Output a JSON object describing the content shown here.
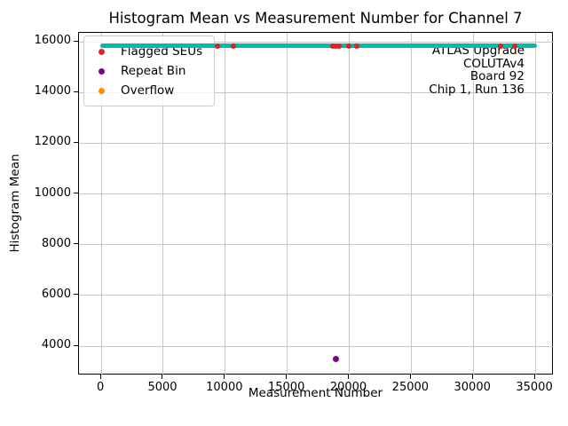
{
  "chart_data": {
    "type": "scatter",
    "title": "Histogram Mean vs Measurement Number for Channel 7",
    "xlabel": "Measurement Number",
    "ylabel": "Histogram Mean",
    "xlim": [
      -1800,
      36500
    ],
    "ylim": [
      2850,
      16350
    ],
    "xticks": [
      0,
      5000,
      10000,
      15000,
      20000,
      25000,
      30000,
      35000
    ],
    "yticks": [
      4000,
      6000,
      8000,
      10000,
      12000,
      14000,
      16000
    ],
    "grid": true,
    "legend_position": "upper left",
    "baseline": {
      "name": "histogram-mean-trace",
      "y": 15800,
      "x_start": 0,
      "x_end": 35200,
      "color": "#00b9b0",
      "thickness": 5
    },
    "series": [
      {
        "name": "Flagged SEUs",
        "color": "#d62728",
        "marker_size": 6,
        "points": [
          [
            9450,
            15790
          ],
          [
            10700,
            15790
          ],
          [
            18750,
            15790
          ],
          [
            18950,
            15790
          ],
          [
            19250,
            15790
          ],
          [
            20000,
            15790
          ],
          [
            20700,
            15790
          ],
          [
            32300,
            15790
          ],
          [
            33400,
            15790
          ]
        ]
      },
      {
        "name": "Repeat Bin",
        "color": "#800080",
        "marker_size": 7,
        "points": [
          [
            18970,
            3470
          ]
        ]
      },
      {
        "name": "Overflow",
        "color": "#ff8c00",
        "marker_size": 6,
        "points": []
      }
    ],
    "annotation": {
      "align": "right",
      "lines": [
        "ATLAS Upgrade",
        "COLUTAv4",
        "Board 92",
        "Chip 1, Run 136"
      ]
    }
  },
  "colors": {
    "grid": "#c6c6c6",
    "spine": "#000000",
    "background": "#ffffff",
    "legend_border": "#cccccc"
  }
}
